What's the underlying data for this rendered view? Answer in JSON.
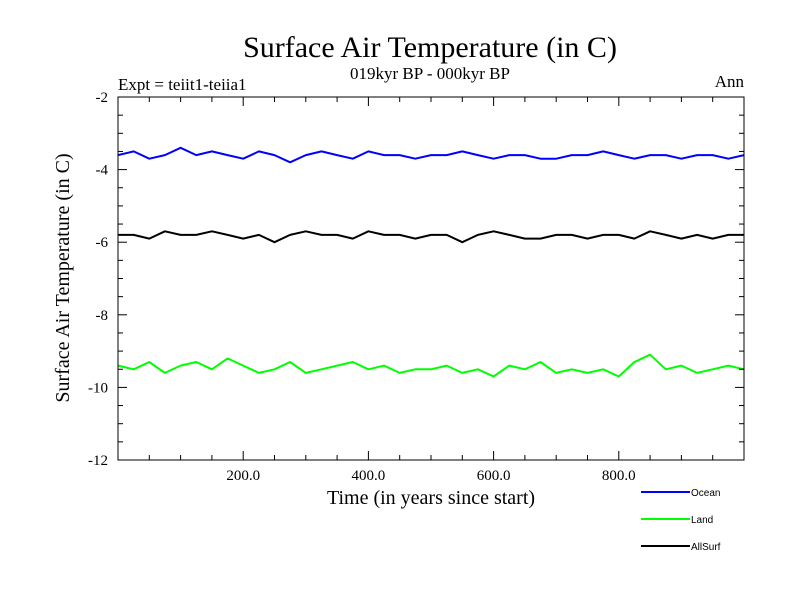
{
  "chart_data": {
    "type": "line",
    "title": "Surface Air Temperature (in C)",
    "subtitle": "019kyr BP - 000kyr BP",
    "expt_label": "Expt = teiit1-teiia1",
    "season_label": "Ann",
    "xlabel": "Time (in years since start)",
    "ylabel": "Surface Air Temperature (in C)",
    "xlim": [
      0,
      1000
    ],
    "ylim": [
      -12,
      -2
    ],
    "x_ticks": [
      200,
      400,
      600,
      800
    ],
    "x_tick_labels": [
      "200.0",
      "400.0",
      "600.0",
      "800.0"
    ],
    "y_ticks": [
      -12,
      -10,
      -8,
      -6,
      -4,
      -2
    ],
    "y_tick_labels": [
      "-12",
      "-10",
      "-8",
      "-6",
      "-4",
      "-2"
    ],
    "grid": false,
    "legend_position": "bottom-right",
    "x_step": 25,
    "series": [
      {
        "name": "Ocean",
        "color": "#0000ff",
        "values": [
          -3.6,
          -3.5,
          -3.7,
          -3.6,
          -3.4,
          -3.6,
          -3.5,
          -3.6,
          -3.7,
          -3.5,
          -3.6,
          -3.8,
          -3.6,
          -3.5,
          -3.6,
          -3.7,
          -3.5,
          -3.6,
          -3.6,
          -3.7,
          -3.6,
          -3.6,
          -3.5,
          -3.6,
          -3.7,
          -3.6,
          -3.6,
          -3.7,
          -3.7,
          -3.6,
          -3.6,
          -3.5,
          -3.6,
          -3.7,
          -3.6,
          -3.6,
          -3.7,
          -3.6,
          -3.6,
          -3.7,
          -3.6
        ]
      },
      {
        "name": "Land",
        "color": "#00ff00",
        "values": [
          -9.4,
          -9.5,
          -9.3,
          -9.6,
          -9.4,
          -9.3,
          -9.5,
          -9.2,
          -9.4,
          -9.6,
          -9.5,
          -9.3,
          -9.6,
          -9.5,
          -9.4,
          -9.3,
          -9.5,
          -9.4,
          -9.6,
          -9.5,
          -9.5,
          -9.4,
          -9.6,
          -9.5,
          -9.7,
          -9.4,
          -9.5,
          -9.3,
          -9.6,
          -9.5,
          -9.6,
          -9.5,
          -9.7,
          -9.3,
          -9.1,
          -9.5,
          -9.4,
          -9.6,
          -9.5,
          -9.4,
          -9.5
        ]
      },
      {
        "name": "AllSurf",
        "color": "#000000",
        "values": [
          -5.8,
          -5.8,
          -5.9,
          -5.7,
          -5.8,
          -5.8,
          -5.7,
          -5.8,
          -5.9,
          -5.8,
          -6.0,
          -5.8,
          -5.7,
          -5.8,
          -5.8,
          -5.9,
          -5.7,
          -5.8,
          -5.8,
          -5.9,
          -5.8,
          -5.8,
          -6.0,
          -5.8,
          -5.7,
          -5.8,
          -5.9,
          -5.9,
          -5.8,
          -5.8,
          -5.9,
          -5.8,
          -5.8,
          -5.9,
          -5.7,
          -5.8,
          -5.9,
          -5.8,
          -5.9,
          -5.8,
          -5.8
        ]
      }
    ]
  }
}
